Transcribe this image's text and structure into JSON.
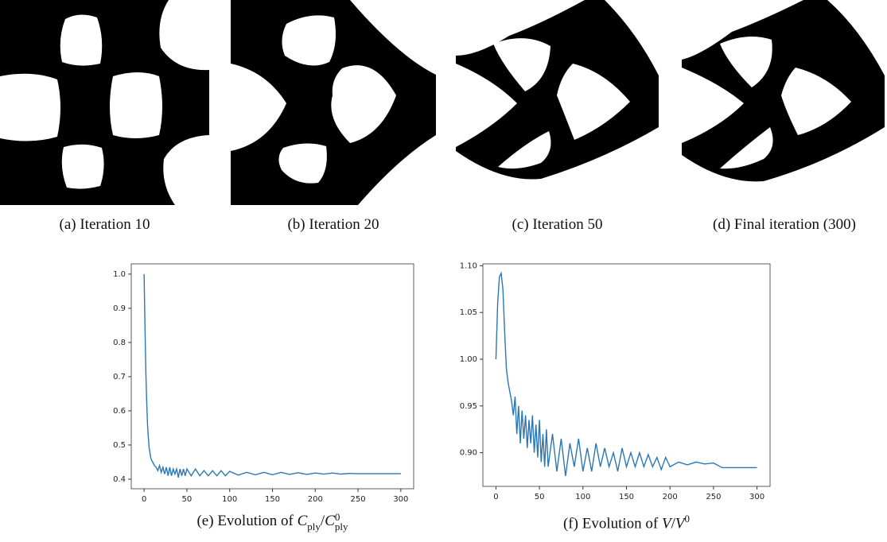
{
  "panels": [
    "(a) Iteration 10",
    "(b) Iteration 20",
    "(c) Iteration 50",
    "(d) Final iteration (300)"
  ],
  "chart_data": [
    {
      "type": "line",
      "caption": {
        "text": "(e) Evolution of",
        "symbol": "C",
        "sub": "ply",
        "slash": "/",
        "sup": "0"
      },
      "xlim": [
        -15,
        315
      ],
      "ylim": [
        0.372,
        1.03
      ],
      "xticks": [
        0,
        50,
        100,
        150,
        200,
        250,
        300
      ],
      "yticks": [
        0.4,
        0.5,
        0.6,
        0.7,
        0.8,
        0.9,
        {
          "value": 1,
          "label": "1.0"
        }
      ],
      "series": [
        {
          "color": "#2b77b4",
          "x": [
            0,
            1,
            2,
            3,
            4,
            5,
            6,
            8,
            10,
            12,
            14,
            16,
            18,
            20,
            22,
            24,
            26,
            28,
            30,
            32,
            34,
            36,
            38,
            40,
            42,
            44,
            46,
            48,
            50,
            55,
            60,
            65,
            70,
            75,
            80,
            85,
            90,
            95,
            100,
            110,
            120,
            130,
            140,
            150,
            160,
            170,
            180,
            190,
            200,
            210,
            220,
            230,
            240,
            250,
            260,
            270,
            280,
            290,
            300
          ],
          "values": [
            1.0,
            0.85,
            0.72,
            0.63,
            0.56,
            0.52,
            0.49,
            0.46,
            0.45,
            0.44,
            0.435,
            0.425,
            0.44,
            0.42,
            0.435,
            0.415,
            0.435,
            0.41,
            0.435,
            0.41,
            0.43,
            0.415,
            0.43,
            0.405,
            0.43,
            0.41,
            0.43,
            0.41,
            0.43,
            0.41,
            0.43,
            0.41,
            0.425,
            0.41,
            0.425,
            0.41,
            0.425,
            0.41,
            0.423,
            0.412,
            0.42,
            0.413,
            0.42,
            0.413,
            0.42,
            0.414,
            0.419,
            0.414,
            0.418,
            0.415,
            0.418,
            0.415,
            0.417,
            0.416,
            0.416,
            0.416,
            0.416,
            0.416,
            0.416
          ]
        }
      ]
    },
    {
      "type": "line",
      "caption": {
        "text": "(f) Evolution of",
        "symbol": "V",
        "slash": "/",
        "sup": "0"
      },
      "xlim": [
        -15,
        315
      ],
      "ylim": [
        0.864,
        1.102
      ],
      "xticks": [
        0,
        50,
        100,
        150,
        200,
        250,
        300
      ],
      "yticks": [
        {
          "value": 0.9,
          "label": "0.90"
        },
        0.95,
        {
          "value": 1,
          "label": "1.00"
        },
        1.05,
        {
          "value": 1.1,
          "label": "1.10"
        }
      ],
      "series": [
        {
          "color": "#2b77b4",
          "x": [
            0,
            2,
            4,
            6,
            8,
            10,
            12,
            14,
            16,
            18,
            20,
            22,
            24,
            26,
            28,
            30,
            32,
            34,
            36,
            38,
            40,
            42,
            44,
            46,
            48,
            50,
            52,
            54,
            56,
            58,
            60,
            65,
            70,
            75,
            80,
            85,
            90,
            95,
            100,
            105,
            110,
            115,
            120,
            125,
            130,
            135,
            140,
            145,
            150,
            155,
            160,
            165,
            170,
            175,
            180,
            185,
            190,
            195,
            200,
            210,
            220,
            230,
            240,
            250,
            260,
            280,
            300
          ],
          "values": [
            1.0,
            1.06,
            1.088,
            1.092,
            1.075,
            1.03,
            0.99,
            0.975,
            0.965,
            0.955,
            0.94,
            0.96,
            0.92,
            0.95,
            0.91,
            0.945,
            0.915,
            0.94,
            0.905,
            0.935,
            0.91,
            0.94,
            0.9,
            0.93,
            0.895,
            0.935,
            0.89,
            0.92,
            0.885,
            0.925,
            0.885,
            0.92,
            0.88,
            0.915,
            0.875,
            0.91,
            0.885,
            0.915,
            0.88,
            0.905,
            0.88,
            0.91,
            0.885,
            0.905,
            0.885,
            0.9,
            0.88,
            0.905,
            0.885,
            0.9,
            0.885,
            0.9,
            0.885,
            0.898,
            0.885,
            0.895,
            0.882,
            0.895,
            0.885,
            0.89,
            0.887,
            0.89,
            0.888,
            0.889,
            0.884,
            0.884,
            0.884
          ]
        }
      ]
    }
  ]
}
